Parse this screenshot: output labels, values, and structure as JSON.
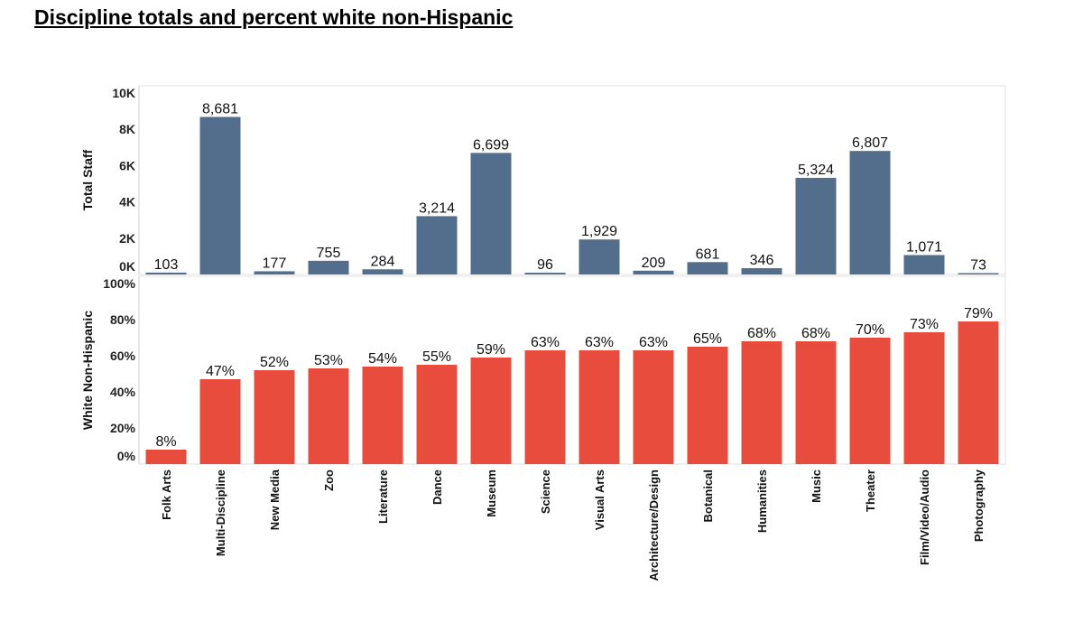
{
  "title": "Discipline totals and percent white non-Hispanic",
  "chart_data": [
    {
      "type": "bar",
      "ylabel": "Total Staff",
      "ylim": [
        0,
        10000
      ],
      "yticks": [
        "0K",
        "2K",
        "4K",
        "6K",
        "8K",
        "10K"
      ],
      "ytick_values": [
        0,
        2000,
        4000,
        6000,
        8000,
        10000
      ],
      "color": "#536d8c",
      "categories": [
        "Folk Arts",
        "Multi-Discipline",
        "New Media",
        "Zoo",
        "Literature",
        "Dance",
        "Museum",
        "Science",
        "Visual Arts",
        "Architecture/Design",
        "Botanical",
        "Humanities",
        "Music",
        "Theater",
        "Film/Video/Audio",
        "Photography"
      ],
      "values": [
        103,
        8681,
        177,
        755,
        284,
        3214,
        6699,
        96,
        1929,
        209,
        681,
        346,
        5324,
        6807,
        1071,
        73
      ],
      "labels": [
        "103",
        "8,681",
        "177",
        "755",
        "284",
        "3,214",
        "6,699",
        "96",
        "1,929",
        "209",
        "681",
        "346",
        "5,324",
        "6,807",
        "1,071",
        "73"
      ]
    },
    {
      "type": "bar",
      "ylabel": "White Non-Hispanic",
      "ylim": [
        0,
        100
      ],
      "yticks": [
        "0%",
        "20%",
        "40%",
        "60%",
        "80%",
        "100%"
      ],
      "ytick_values": [
        0,
        20,
        40,
        60,
        80,
        100
      ],
      "color": "#e84c3d",
      "categories": [
        "Folk Arts",
        "Multi-Discipline",
        "New Media",
        "Zoo",
        "Literature",
        "Dance",
        "Museum",
        "Science",
        "Visual Arts",
        "Architecture/Design",
        "Botanical",
        "Humanities",
        "Music",
        "Theater",
        "Film/Video/Audio",
        "Photography"
      ],
      "values": [
        8,
        47,
        52,
        53,
        54,
        55,
        59,
        63,
        63,
        63,
        65,
        68,
        68,
        70,
        73,
        79
      ],
      "labels": [
        "8%",
        "47%",
        "52%",
        "53%",
        "54%",
        "55%",
        "59%",
        "63%",
        "63%",
        "63%",
        "65%",
        "68%",
        "68%",
        "70%",
        "73%",
        "79%"
      ]
    }
  ]
}
